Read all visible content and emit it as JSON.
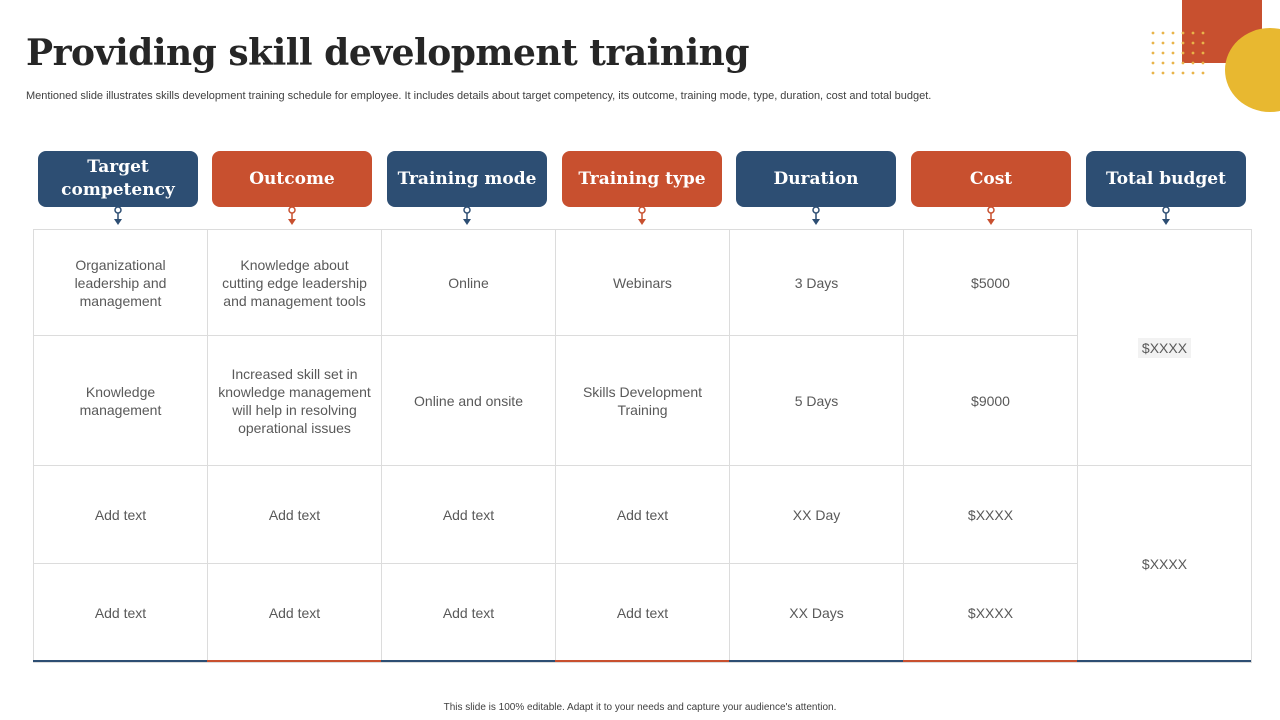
{
  "slide": {
    "title": "Providing skill development training",
    "subtitle": "Mentioned slide illustrates skills development training schedule for employee. It includes details about target competency, its outcome, training mode, type, duration, cost and total budget.",
    "footer": "This slide is 100% editable. Adapt it to your needs and capture your audience's attention."
  },
  "colors": {
    "navy": "#2d4e73",
    "orange": "#c8502f",
    "yellow": "#e8b830",
    "dots": "#e9b44a"
  },
  "headers": [
    {
      "label": "Target competency",
      "color": "navy"
    },
    {
      "label": "Outcome",
      "color": "orange"
    },
    {
      "label": "Training mode",
      "color": "navy"
    },
    {
      "label": "Training type",
      "color": "orange"
    },
    {
      "label": "Duration",
      "color": "navy"
    },
    {
      "label": "Cost",
      "color": "orange"
    },
    {
      "label": "Total budget",
      "color": "navy"
    }
  ],
  "rows": [
    {
      "competency": "Organizational leadership and management",
      "outcome": "Knowledge about cutting edge leadership and management tools",
      "mode": "Online",
      "type": "Webinars",
      "duration": "3 Days",
      "cost": "$5000"
    },
    {
      "competency": "Knowledge management",
      "outcome": "Increased skill set in knowledge management will help in resolving operational issues",
      "mode": "Online and onsite",
      "type": "Skills Development Training",
      "duration": "5 Days",
      "cost": "$9000"
    },
    {
      "competency": "Add text",
      "outcome": "Add text",
      "mode": "Add text",
      "type": "Add text",
      "duration": "XX Day",
      "cost": "$XXXX"
    },
    {
      "competency": "Add text",
      "outcome": "Add text",
      "mode": "Add text",
      "type": "Add text",
      "duration": "XX Days",
      "cost": "$XXXX"
    }
  ],
  "budgets": [
    "$XXXX",
    "$XXXX"
  ]
}
